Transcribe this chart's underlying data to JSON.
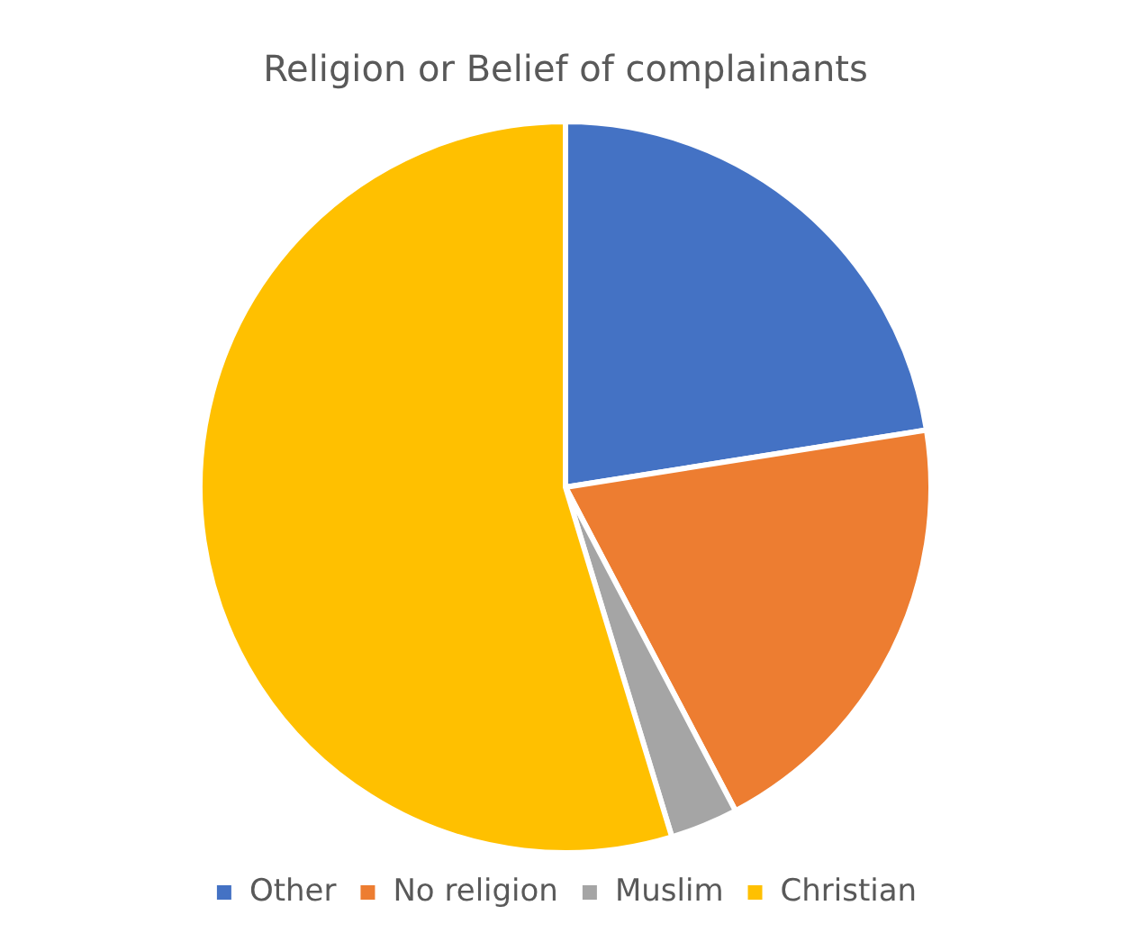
{
  "chart_data": {
    "type": "pie",
    "title": "Religion or Belief of complainants",
    "categories": [
      "Other",
      "No religion",
      "Muslim",
      "Christian"
    ],
    "values": [
      22.5,
      19.8,
      3,
      54.7
    ],
    "colors": [
      "#4472c4",
      "#ed7d31",
      "#a5a5a5",
      "#ffc000"
    ],
    "legend": "bottom"
  }
}
